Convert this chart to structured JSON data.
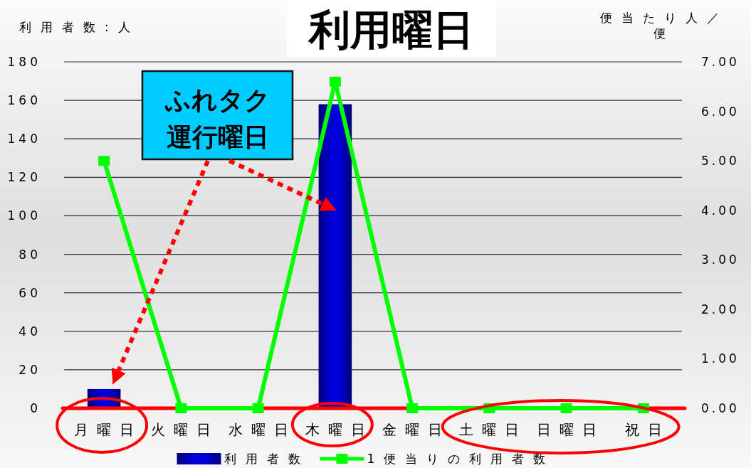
{
  "chart_data": {
    "type": "bar",
    "title": "利用曜日",
    "ylabel": "利用者数:人",
    "y2label": "便当たり人／便",
    "categories": [
      "月曜日",
      "火曜日",
      "水曜日",
      "木曜日",
      "金曜日",
      "土曜日",
      "日曜日",
      "祝日"
    ],
    "series": [
      {
        "name": "利用者数",
        "color": "#0000cc",
        "values": [
          10,
          0,
          0,
          158,
          0,
          0,
          0,
          0
        ]
      },
      {
        "name": "1便当りの利用者数",
        "type": "line",
        "axis": "y2",
        "color": "#00ff00",
        "marker": "square",
        "values": [
          5.0,
          0,
          0,
          6.6,
          0,
          0,
          0,
          0
        ]
      }
    ],
    "ylim": [
      0,
      180
    ],
    "yticks": [
      0,
      20,
      40,
      60,
      80,
      100,
      120,
      140,
      160,
      180
    ],
    "y2lim": [
      0,
      7
    ],
    "y2ticks": [
      {
        "value": 0,
        "label": "0.00"
      },
      {
        "value": 1,
        "label": "1.00"
      },
      {
        "value": 2,
        "label": "2.00"
      },
      {
        "value": 3,
        "label": "3.00"
      },
      {
        "value": 4,
        "label": "4.00"
      },
      {
        "value": 5,
        "label": "5.00"
      },
      {
        "value": 6,
        "label": "6.00"
      },
      {
        "value": 7,
        "label": "7.00"
      }
    ],
    "annotations": [
      "ふれタク運行曜日"
    ],
    "grid": "y",
    "legend": "bottom"
  }
}
